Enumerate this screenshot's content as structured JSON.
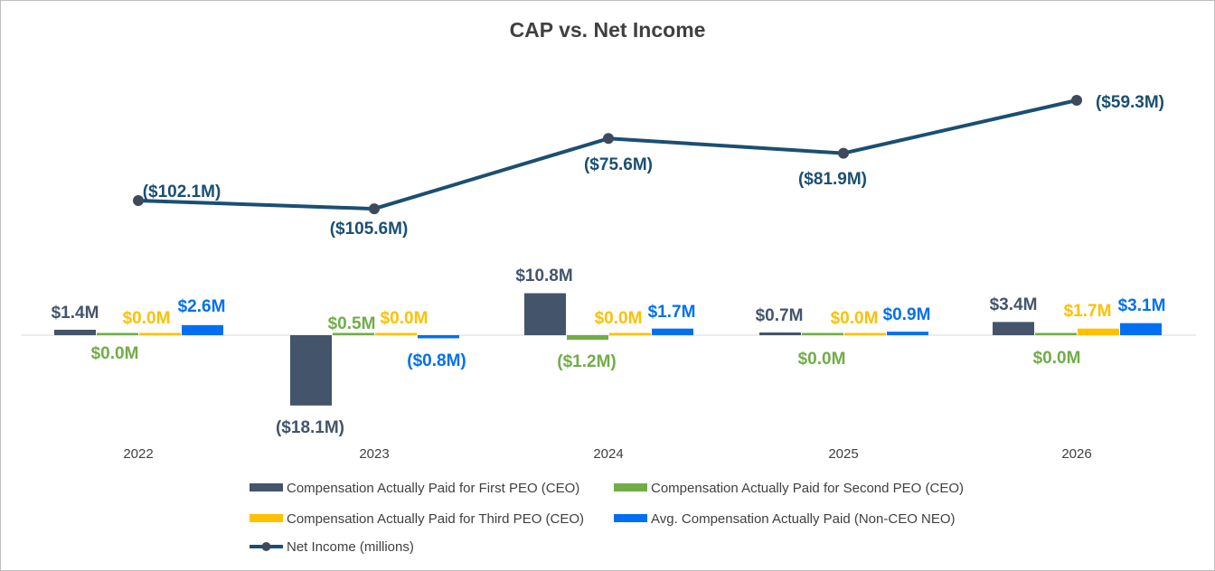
{
  "chart_data": {
    "type": "bar",
    "title": "CAP vs. Net Income",
    "categories": [
      "2022",
      "2023",
      "2024",
      "2025",
      "2026"
    ],
    "series": [
      {
        "name": "Compensation Actually Paid for First PEO (CEO)",
        "type": "bar",
        "color": "#44546a",
        "values": [
          1.4,
          -18.1,
          10.8,
          0.7,
          3.4
        ],
        "labels": [
          "$1.4M",
          "($18.1M)",
          "$10.8M",
          "$0.7M",
          "$3.4M"
        ]
      },
      {
        "name": "Compensation Actually Paid for Second PEO (CEO)",
        "type": "bar",
        "color": "#70ad47",
        "values": [
          0.0,
          0.5,
          -1.2,
          0.0,
          0.0
        ],
        "labels": [
          "$0.0M",
          "$0.5M",
          "($1.2M)",
          "$0.0M",
          "$0.0M"
        ]
      },
      {
        "name": "Compensation Actually Paid for Third PEO (CEO)",
        "type": "bar",
        "color": "#ffc000",
        "values": [
          0.0,
          0.0,
          0.0,
          0.0,
          1.7
        ],
        "labels": [
          "$0.0M",
          "$0.0M",
          "$0.0M",
          "$0.0M",
          "$1.7M"
        ]
      },
      {
        "name": "Avg. Compensation Actually Paid (Non-CEO NEO)",
        "type": "bar",
        "color": "#0070f0",
        "values": [
          2.6,
          -0.8,
          1.7,
          0.9,
          3.1
        ],
        "labels": [
          "$2.6M",
          "($0.8M)",
          "$1.7M",
          "$0.9M",
          "$3.1M"
        ]
      },
      {
        "name": "Net Income (millions)",
        "type": "line",
        "color": "#1b4f72",
        "marker_color": "#3e4a5c",
        "values": [
          -102.1,
          -105.6,
          -75.6,
          -81.9,
          -59.3
        ],
        "labels": [
          "($102.1M)",
          "($105.6M)",
          "($75.6M)",
          "($81.9M)",
          "($59.3M)"
        ]
      }
    ],
    "legend_position": "bottom",
    "grid": false
  }
}
